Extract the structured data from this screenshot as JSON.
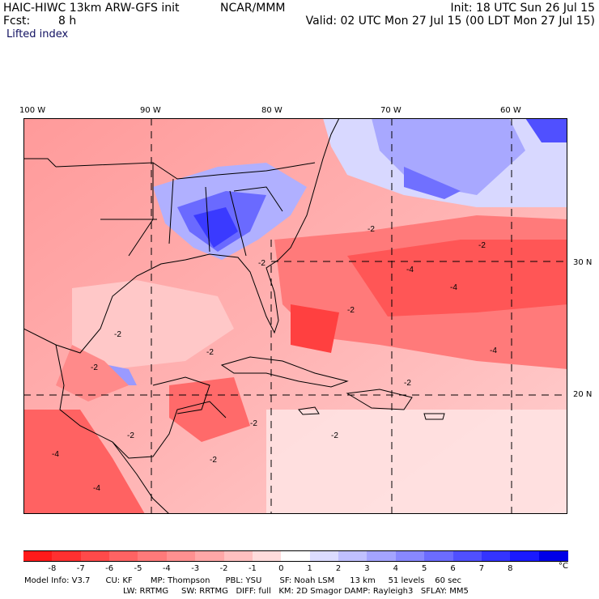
{
  "header": {
    "model_title": "HAIC-HIWC 13km ARW-GFS init",
    "org": "NCAR/MMM",
    "init_text": "Init: 18 UTC Sun 26 Jul 15",
    "fcst_label": "Fcst:",
    "fcst_value": "8 h",
    "valid_text": "Valid: 02 UTC Mon 27 Jul 15 (00 LDT Mon 27 Jul 15)",
    "field_name": "Lifted index"
  },
  "map": {
    "lon_labels": [
      "100 W",
      "90 W",
      "80 W",
      "70 W",
      "60 W"
    ],
    "lat_labels": [
      "30 N",
      "20 N"
    ],
    "contour_labels": [
      "-2",
      "-2",
      "-2",
      "-4",
      "-4",
      "-2",
      "-2",
      "-2",
      "-4",
      "-2",
      "-2",
      "-2",
      "-2",
      "-2",
      "-4",
      "-4",
      "-2"
    ]
  },
  "colorbar": {
    "ticks": [
      "-8",
      "-7",
      "-6",
      "-5",
      "-4",
      "-3",
      "-2",
      "-1",
      "0",
      "1",
      "2",
      "3",
      "4",
      "5",
      "6",
      "7",
      "8"
    ],
    "unit": "°C",
    "colors": [
      "#ff1a1a",
      "#ff3030",
      "#ff4a4a",
      "#ff6363",
      "#ff7a7a",
      "#ff9090",
      "#ffa7a7",
      "#ffc0c0",
      "#ffdcdc",
      "#ffffff",
      "#dcdcff",
      "#c0c0ff",
      "#a4a4ff",
      "#8888ff",
      "#6c6cff",
      "#5050ff",
      "#3434ff",
      "#1a1aff",
      "#0000e8"
    ]
  },
  "footer": {
    "line1": "Model Info: V3.7      CU: KF       MP: Thompson      PBL: YSU       SF: Noah LSM      13 km     51 levels    60 sec",
    "line2": "LW: RRTMG     SW: RRTMG   DIFF: full   KM: 2D Smagor DAMP: Rayleigh3   SFLAY: MM5"
  }
}
